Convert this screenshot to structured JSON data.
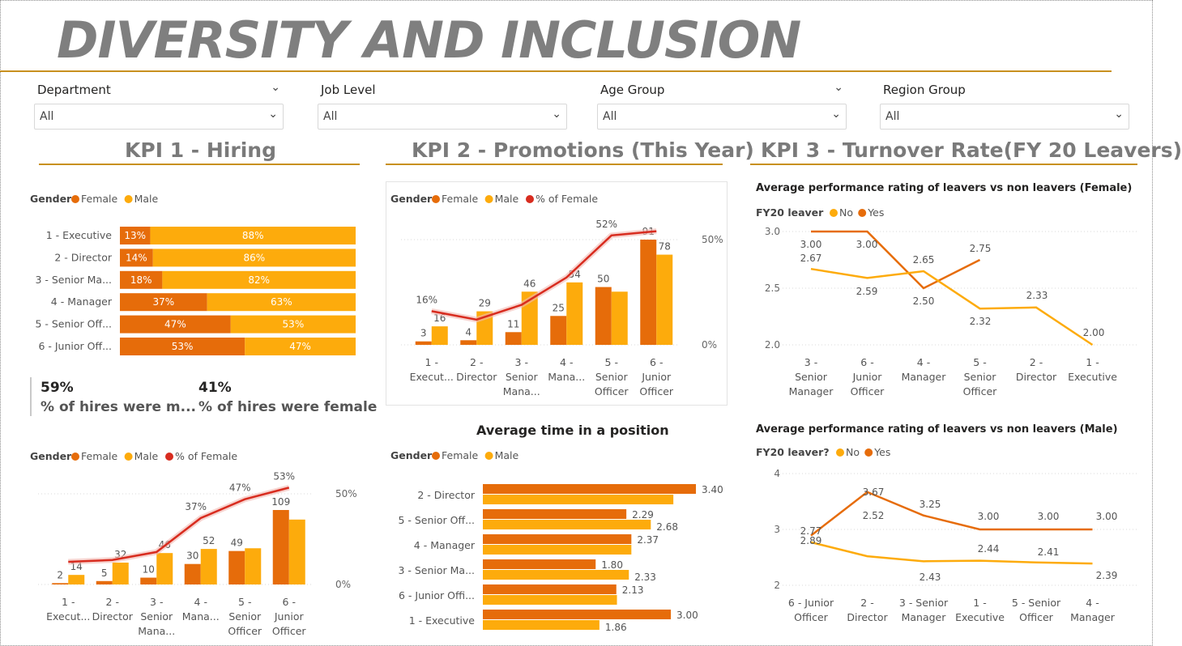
{
  "title": "DIVERSITY AND INCLUSION",
  "colors": {
    "female": "#E66C0A",
    "male": "#FDAB0C",
    "pct_female": "#D82C1F",
    "accent_rule": "#C8901F",
    "no": "#FDAB0C",
    "yes": "#E66C0A"
  },
  "slicers": [
    {
      "label": "Department",
      "value": "All"
    },
    {
      "label": "Job Level",
      "value": "All"
    },
    {
      "label": "Age Group",
      "value": "All"
    },
    {
      "label": "Region Group",
      "value": "All"
    }
  ],
  "kpi_headers": {
    "kpi1": "KPI 1 - Hiring",
    "kpi2": "KPI 2 - Promotions (This Year)",
    "kpi3": "KPI 3 - Turnover Rate(FY 20 Leavers)"
  },
  "cards": [
    {
      "value": "59%",
      "label": "% of hires were m..."
    },
    {
      "value": "41%",
      "label": "% of hires were female"
    }
  ],
  "chart_data": [
    {
      "id": "hiring_stacked",
      "type": "bar",
      "orientation": "horizontal-100%-stacked",
      "legend_title": "Gender",
      "legend": [
        "Female",
        "Male"
      ],
      "categories": [
        "1 - Executive",
        "2 - Director",
        "3 - Senior Ma...",
        "4 - Manager",
        "5 - Senior Off...",
        "6 - Junior Off..."
      ],
      "series": [
        {
          "name": "Female",
          "values": [
            13,
            14,
            18,
            37,
            47,
            53
          ],
          "labels": [
            "13%",
            "14%",
            "18%",
            "37%",
            "47%",
            "53%"
          ]
        },
        {
          "name": "Male",
          "values": [
            88,
            86,
            82,
            63,
            53,
            47
          ],
          "labels": [
            "88%",
            "86%",
            "82%",
            "63%",
            "53%",
            "47%"
          ]
        }
      ]
    },
    {
      "id": "hiring_combo",
      "type": "bar",
      "legend_title": "Gender",
      "legend": [
        "Female",
        "Male",
        "% of Female"
      ],
      "categories": [
        [
          "1 -",
          "Execut..."
        ],
        [
          "2 -",
          "Director"
        ],
        [
          "3 -",
          "Senior",
          "Mana..."
        ],
        [
          "4 -",
          "Mana..."
        ],
        [
          "5 -",
          "Senior",
          "Officer"
        ],
        [
          "6 -",
          "Junior",
          "Officer"
        ]
      ],
      "series": [
        {
          "name": "Female",
          "values": [
            2,
            5,
            10,
            30,
            49,
            109
          ]
        },
        {
          "name": "Male",
          "values": [
            14,
            32,
            46,
            52,
            53,
            95
          ]
        },
        {
          "name": "% of Female",
          "values": [
            12.5,
            13.5,
            17.9,
            36.6,
            47,
            53.4
          ]
        }
      ],
      "bar_labels": [
        "2",
        "14",
        "5",
        "32",
        "10",
        "46",
        "30",
        "52",
        "49",
        "",
        "109",
        ""
      ],
      "pct_labels": [
        "",
        "",
        "",
        "37%",
        "47%",
        "53%"
      ],
      "y2_ticks": [
        "50%",
        "0%"
      ]
    },
    {
      "id": "promotions_combo",
      "type": "bar",
      "legend_title": "Gender",
      "legend": [
        "Female",
        "Male",
        "% of Female"
      ],
      "categories": [
        [
          "1 -",
          "Execut..."
        ],
        [
          "2 -",
          "Director"
        ],
        [
          "3 -",
          "Senior",
          "Mana..."
        ],
        [
          "4 -",
          "Mana..."
        ],
        [
          "5 -",
          "Senior",
          "Officer"
        ],
        [
          "6 -",
          "Junior",
          "Officer"
        ]
      ],
      "series": [
        {
          "name": "Female",
          "values": [
            3,
            4,
            11,
            25,
            50,
            91
          ]
        },
        {
          "name": "Male",
          "values": [
            16,
            29,
            46,
            54,
            46,
            78
          ]
        },
        {
          "name": "% of Female",
          "values": [
            16,
            12,
            19,
            32,
            52,
            54
          ]
        }
      ],
      "bar_labels": [
        "3",
        "16",
        "4",
        "29",
        "11",
        "46",
        "25",
        "54",
        "50",
        "",
        "91",
        "78"
      ],
      "pct_labels": [
        "16%",
        "",
        "",
        "",
        "52%",
        ""
      ],
      "y2_ticks": [
        "50%",
        "0%"
      ]
    },
    {
      "id": "avg_time_position",
      "type": "bar",
      "orientation": "horizontal-clustered",
      "title": "Average time in a position",
      "legend_title": "Gender",
      "legend": [
        "Female",
        "Male"
      ],
      "categories": [
        "2 - Director",
        "5 - Senior Off...",
        "4 - Manager",
        "3 - Senior Ma...",
        "6 - Junior Offi...",
        "1 - Executive"
      ],
      "series": [
        {
          "name": "Female",
          "values": [
            3.4,
            2.29,
            2.37,
            1.8,
            2.13,
            3.0
          ]
        },
        {
          "name": "Male",
          "values": [
            3.04,
            2.68,
            2.37,
            2.33,
            2.14,
            1.86
          ]
        }
      ],
      "labels": [
        "3.40",
        "2.29",
        "2.68",
        "2.37",
        "1.80",
        "2.33",
        "2.13",
        "3.00",
        "1.86"
      ]
    },
    {
      "id": "turnover_female",
      "type": "line",
      "title": "Average performance rating of leavers vs non leavers (Female)",
      "legend_title": "FY20 leaver",
      "legend": [
        "No",
        "Yes"
      ],
      "categories": [
        [
          "3 -",
          "Senior",
          "Manager"
        ],
        [
          "6 -",
          "Junior",
          "Officer"
        ],
        [
          "4 -",
          "Manager"
        ],
        [
          "5 -",
          "Senior",
          "Officer"
        ],
        [
          "2 -",
          "Director"
        ],
        [
          "1 -",
          "Executive"
        ]
      ],
      "series": [
        {
          "name": "No",
          "values": [
            2.67,
            2.59,
            2.65,
            2.32,
            2.33,
            2.0
          ]
        },
        {
          "name": "Yes",
          "values": [
            3.0,
            3.0,
            2.5,
            2.75,
            null,
            null
          ]
        }
      ],
      "labels": [
        "3.00",
        "2.67",
        "3.00",
        "2.59",
        "2.65",
        "2.50",
        "2.75",
        "2.32",
        "2.33",
        "2.00"
      ],
      "ylim": [
        2.0,
        3.0
      ],
      "y_ticks": [
        "3.0",
        "2.5",
        "2.0"
      ]
    },
    {
      "id": "turnover_male",
      "type": "line",
      "title": "Average performance rating of leavers vs non leavers (Male)",
      "legend_title": "FY20 leaver?",
      "legend": [
        "No",
        "Yes"
      ],
      "categories": [
        [
          "6 - Junior",
          "Officer"
        ],
        [
          "2 -",
          "Director"
        ],
        [
          "3 - Senior",
          "Manager"
        ],
        [
          "1 -",
          "Executive"
        ],
        [
          "5 - Senior",
          "Officer"
        ],
        [
          "4 -",
          "Manager"
        ]
      ],
      "series": [
        {
          "name": "No",
          "values": [
            2.77,
            2.52,
            2.43,
            2.44,
            2.41,
            2.39
          ]
        },
        {
          "name": "Yes",
          "values": [
            2.89,
            3.67,
            3.25,
            3.0,
            3.0,
            3.0
          ]
        }
      ],
      "labels": [
        "2.77",
        "2.89",
        "3.67",
        "2.52",
        "3.25",
        "2.43",
        "3.00",
        "2.44",
        "3.00",
        "2.41",
        "3.00",
        "2.39"
      ],
      "ylim": [
        2,
        4
      ],
      "y_ticks": [
        "4",
        "3",
        "2"
      ]
    }
  ]
}
